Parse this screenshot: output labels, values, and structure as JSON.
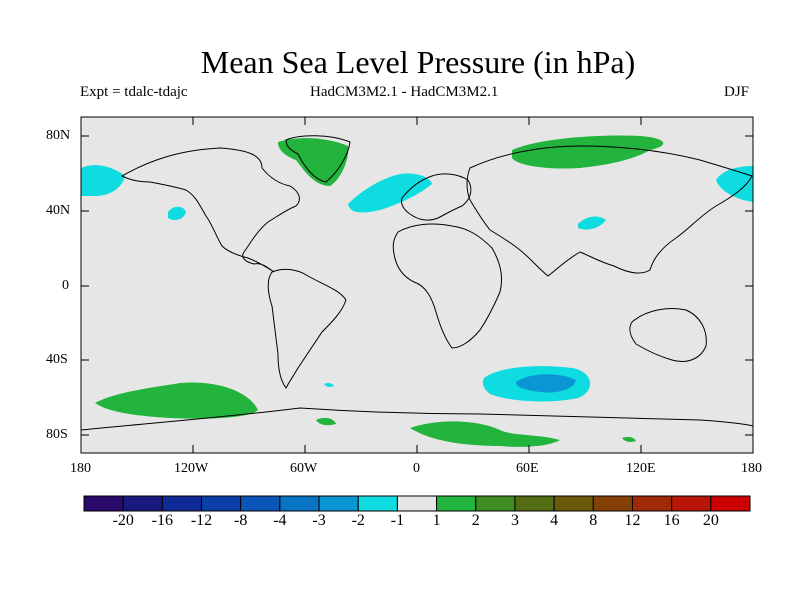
{
  "title": "Mean Sea Level Pressure (in hPa)",
  "experiment": "Expt = tdalc-tdajc",
  "model_comparison": "HadCM3M2.1 - HadCM3M2.1",
  "season": "DJF",
  "latitude_labels": [
    "80N",
    "40N",
    "0",
    "40S",
    "80S"
  ],
  "longitude_labels": [
    "180",
    "120W",
    "60W",
    "0",
    "60E",
    "120E",
    "180"
  ],
  "colorbar": {
    "colors": [
      "#2a0a6b",
      "#1a1a7e",
      "#0f2a96",
      "#0a3ea8",
      "#0a55b8",
      "#0a74c4",
      "#0a96d2",
      "#0fdce0",
      "#e5e5e5",
      "#22b43c",
      "#3f8c22",
      "#546d12",
      "#6b5a0a",
      "#854008",
      "#a02a08",
      "#b81608",
      "#cc0000"
    ],
    "labels": [
      "-20",
      "-16",
      "-12",
      "-8",
      "-4",
      "-3",
      "-2",
      "-1",
      "1",
      "2",
      "3",
      "4",
      "8",
      "12",
      "16",
      "20"
    ]
  },
  "colors": {
    "ocean_land_bg": "#e6e6e6",
    "positive_anomaly": "#22b43c",
    "negative_anomaly": "#0fdce0",
    "strong_negative": "#0a96d2"
  }
}
